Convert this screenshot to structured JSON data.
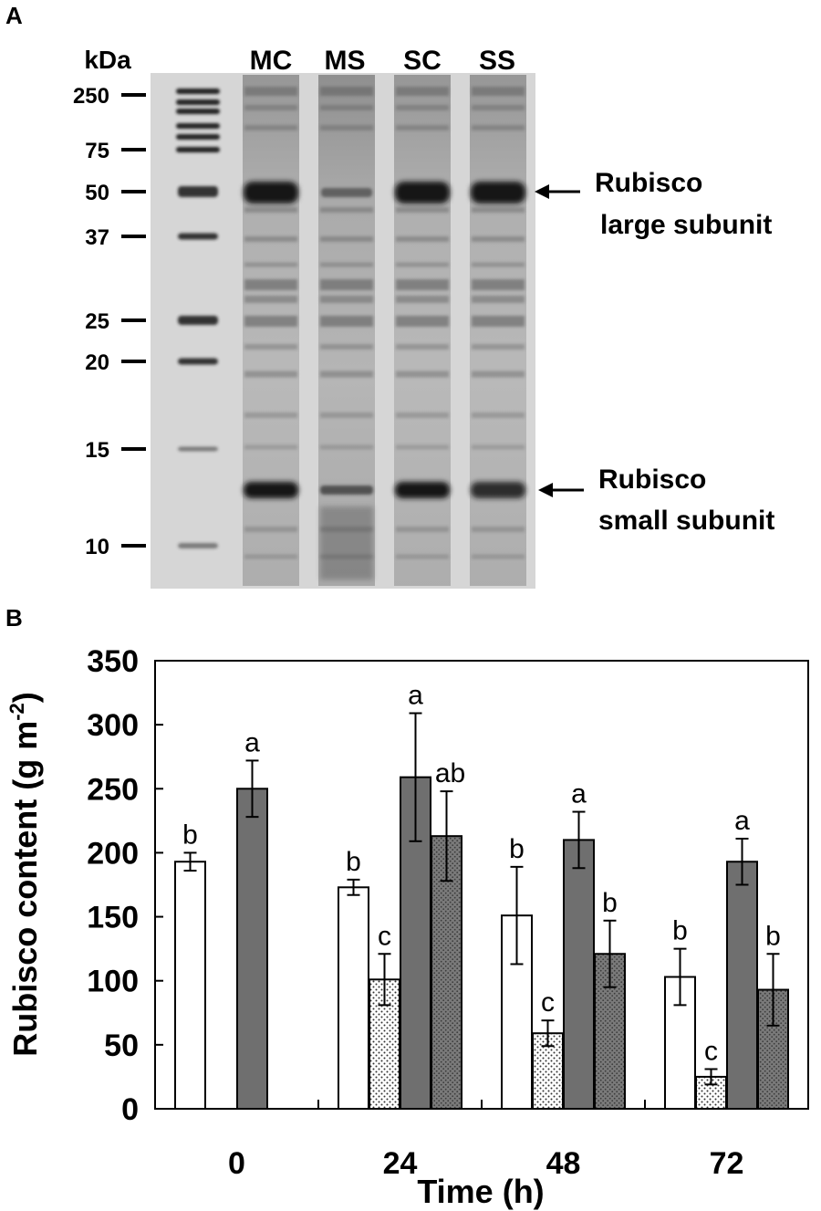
{
  "panels": {
    "a_label": "A",
    "b_label": "B"
  },
  "gel": {
    "kda_label": "kDa",
    "markers": [
      "250",
      "75",
      "50",
      "37",
      "25",
      "20",
      "15",
      "10"
    ],
    "lanes": [
      "MC",
      "MS",
      "SC",
      "SS"
    ],
    "annotations": {
      "large_line1": "Rubisco",
      "large_line2": "large subunit",
      "small_line1": "Rubisco",
      "small_line2": "small subunit"
    }
  },
  "chart_data": {
    "type": "bar",
    "title": "",
    "xlabel": "Time (h)",
    "ylabel": "Rubisco content (g m⁻²)",
    "ylabel_main": "Rubisco content (g m",
    "ylabel_exp": "-2",
    "ylabel_end": ")",
    "ylim": [
      0,
      350
    ],
    "yticks": [
      "0",
      "50",
      "100",
      "150",
      "200",
      "250",
      "300",
      "350"
    ],
    "categories": [
      "0",
      "24",
      "48",
      "72"
    ],
    "series": [
      {
        "key": "s1",
        "fill": "#ffffff",
        "pattern": "solid",
        "values": [
          193,
          173,
          151,
          103
        ],
        "errors": [
          7,
          6,
          38,
          22
        ],
        "letters": [
          "b",
          "b",
          "b",
          "b"
        ]
      },
      {
        "key": "s2",
        "fill": "#ffffff",
        "pattern": "dots",
        "values": [
          null,
          101,
          59,
          25
        ],
        "errors": [
          null,
          20,
          10,
          6
        ],
        "letters": [
          "",
          "c",
          "c",
          "c"
        ]
      },
      {
        "key": "s3",
        "fill": "#6f6f6f",
        "pattern": "solid",
        "values": [
          250,
          259,
          210,
          193
        ],
        "errors": [
          22,
          50,
          22,
          18
        ],
        "letters": [
          "a",
          "a",
          "a",
          "a"
        ]
      },
      {
        "key": "s4",
        "fill": "#6f6f6f",
        "pattern": "crosshatch",
        "values": [
          null,
          213,
          121,
          93
        ],
        "errors": [
          null,
          35,
          26,
          28
        ],
        "letters": [
          "",
          "ab",
          "b",
          "b"
        ]
      }
    ],
    "grid": false,
    "legend": "none"
  }
}
